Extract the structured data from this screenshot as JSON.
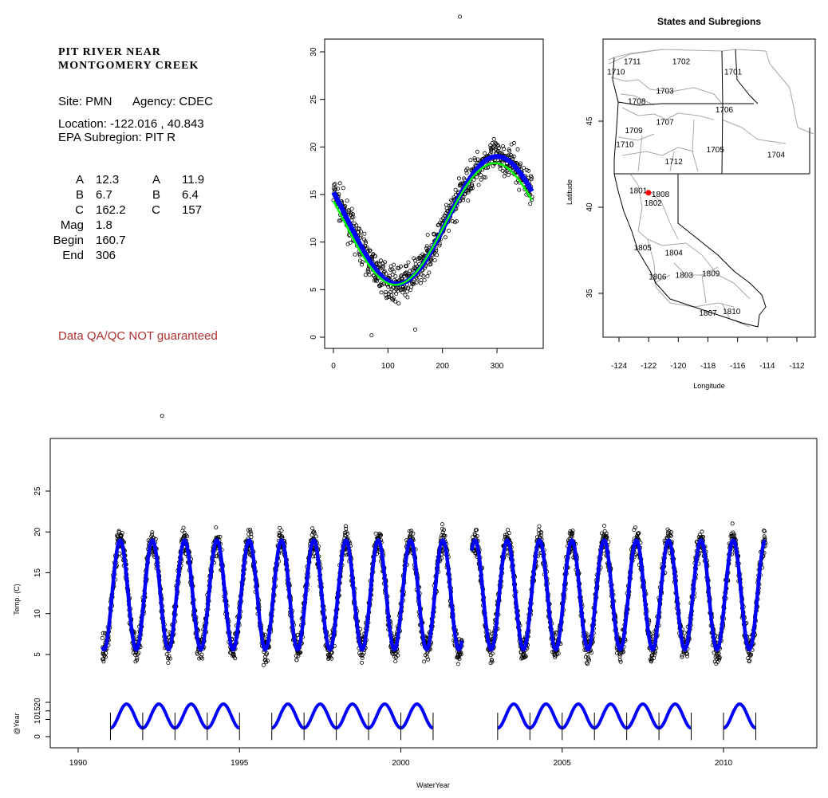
{
  "site": {
    "title_line1": "PIT RIVER NEAR",
    "title_line2": "MONTGOMERY CREEK",
    "site_text": "Site: PMN",
    "agency_text": "Agency: CDEC",
    "location_text": "Location: -122.016 , 40.843",
    "subregion_text": "EPA Subregion: PIT R",
    "stats_left": [
      {
        "label": "A",
        "value": "12.3"
      },
      {
        "label": "B",
        "value": "6.7"
      },
      {
        "label": "C",
        "value": "162.2"
      },
      {
        "label": "Mag",
        "value": "1.8"
      },
      {
        "label": "Begin",
        "value": "160.7"
      },
      {
        "label": "End",
        "value": "306"
      }
    ],
    "stats_right": [
      {
        "label": "A",
        "value": "11.9"
      },
      {
        "label": "B",
        "value": "6.4"
      },
      {
        "label": "C",
        "value": "157"
      }
    ],
    "qa_note": "Data QA/QC NOT guaranteed",
    "qa_color": "#b03030"
  },
  "chart_data": [
    {
      "type": "scatter",
      "title": "",
      "xlabel": "",
      "ylabel": "",
      "xlim": [
        0,
        365
      ],
      "ylim": [
        0,
        31
      ],
      "x_ticks": [
        0,
        100,
        200,
        300
      ],
      "y_ticks": [
        0,
        5,
        10,
        15,
        20,
        25,
        30
      ],
      "series": [
        {
          "type": "scatter",
          "color": "#000000",
          "mean": 12.3,
          "amplitude": 6.7,
          "peak_day": 300,
          "spread": 1.2
        },
        {
          "type": "line",
          "color": "#0000ff",
          "mean": 12.3,
          "amplitude": 6.7,
          "peak_day": 300
        },
        {
          "type": "line",
          "color": "#00ff00",
          "mean": 11.9,
          "amplitude": 6.4,
          "peak_day": 296
        }
      ],
      "outliers": [
        [
          232,
          33.7
        ],
        [
          150,
          0.8
        ],
        [
          70,
          0.2
        ]
      ]
    },
    {
      "type": "map",
      "title": "States and Subregions",
      "xlabel": "Longitude",
      "ylabel": "Latitude",
      "xlim": [
        -125.5,
        -110.5
      ],
      "ylim": [
        32.5,
        49.5
      ],
      "x_ticks": [
        -124,
        -122,
        -120,
        -118,
        -116,
        -114,
        -112
      ],
      "y_ticks": [
        35,
        40,
        45
      ],
      "site_point": {
        "lon": -122.016,
        "lat": 40.843,
        "color": "#ff0000"
      },
      "region_labels": [
        {
          "code": "1711",
          "lon": -123.1,
          "lat": 48.3
        },
        {
          "code": "1702",
          "lon": -119.8,
          "lat": 48.3
        },
        {
          "code": "1701",
          "lon": -116.3,
          "lat": 47.7
        },
        {
          "code": "1710",
          "lon": -124.2,
          "lat": 47.7
        },
        {
          "code": "1703",
          "lon": -120.9,
          "lat": 46.6
        },
        {
          "code": "1708",
          "lon": -122.8,
          "lat": 46.0
        },
        {
          "code": "1706",
          "lon": -116.9,
          "lat": 45.5
        },
        {
          "code": "1707",
          "lon": -120.9,
          "lat": 44.8
        },
        {
          "code": "1709",
          "lon": -123.0,
          "lat": 44.3
        },
        {
          "code": "1710",
          "lon": -123.6,
          "lat": 43.5
        },
        {
          "code": "1705",
          "lon": -117.5,
          "lat": 43.2
        },
        {
          "code": "1704",
          "lon": -113.4,
          "lat": 42.9
        },
        {
          "code": "1712",
          "lon": -120.3,
          "lat": 42.5
        },
        {
          "code": "1801",
          "lon": -122.7,
          "lat": 40.8
        },
        {
          "code": "1808",
          "lon": -121.2,
          "lat": 40.6
        },
        {
          "code": "1802",
          "lon": -121.7,
          "lat": 40.1
        },
        {
          "code": "1805",
          "lon": -122.4,
          "lat": 37.5
        },
        {
          "code": "1804",
          "lon": -120.3,
          "lat": 37.2
        },
        {
          "code": "1806",
          "lon": -121.4,
          "lat": 35.8
        },
        {
          "code": "1803",
          "lon": -119.6,
          "lat": 35.9
        },
        {
          "code": "1809",
          "lon": -117.8,
          "lat": 36.0
        },
        {
          "code": "1807",
          "lon": -118.0,
          "lat": 33.7
        },
        {
          "code": "1810",
          "lon": -116.4,
          "lat": 33.8
        }
      ]
    },
    {
      "type": "scatter",
      "title": "",
      "xlabel": "WaterYear",
      "ylabel": "Temp. (C)",
      "xlim": [
        1989.8,
        2012.8
      ],
      "ylim": [
        -1.5,
        31.5
      ],
      "x_ticks": [
        1990,
        1995,
        2000,
        2005,
        2010
      ],
      "y_ticks": [
        5,
        10,
        15,
        20,
        25
      ],
      "data_range": [
        1990.75,
        2011.3
      ],
      "gap": [
        2001.9,
        2002.2
      ],
      "series": [
        {
          "type": "scatter",
          "color": "#000000",
          "mean": 12.3,
          "amplitude": 6.7,
          "spread": 1.2
        },
        {
          "type": "line",
          "color": "#0000ff",
          "mean": 12.3,
          "amplitude": 6.7
        }
      ],
      "outliers": [
        [
          1992.6,
          34.2
        ]
      ],
      "year_panel": {
        "ylabel": "@Year",
        "y_ticks": [
          0,
          10,
          15,
          20
        ],
        "ylim": [
          -3,
          24
        ],
        "segments": [
          [
            1991,
            1995
          ],
          [
            1996,
            2001
          ],
          [
            2003,
            2009
          ],
          [
            2010,
            2011
          ]
        ],
        "color": "#0000ff"
      }
    }
  ]
}
